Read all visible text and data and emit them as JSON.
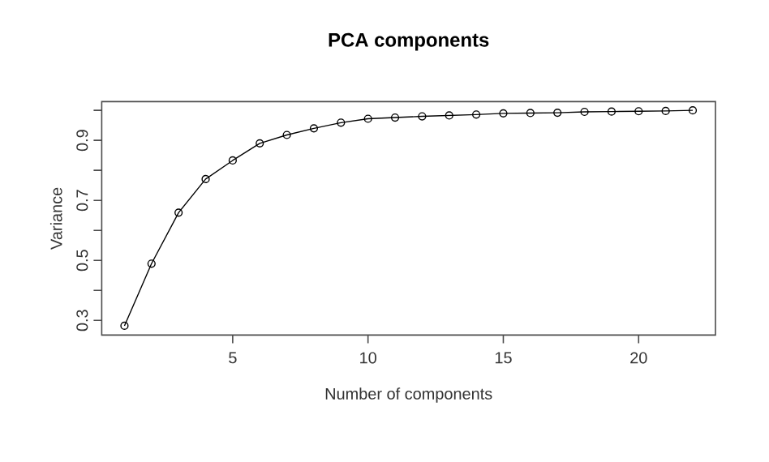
{
  "chart_data": {
    "type": "line",
    "title": "PCA components",
    "xlabel": "Number of components",
    "ylabel": "Variance",
    "x": [
      1,
      2,
      3,
      4,
      5,
      6,
      7,
      8,
      9,
      10,
      11,
      12,
      13,
      14,
      15,
      16,
      17,
      18,
      19,
      20,
      21,
      22
    ],
    "series": [
      {
        "color": "#000000",
        "values": [
          0.282,
          0.489,
          0.659,
          0.771,
          0.833,
          0.89,
          0.918,
          0.94,
          0.959,
          0.972,
          0.976,
          0.98,
          0.983,
          0.986,
          0.99,
          0.991,
          0.992,
          0.995,
          0.996,
          0.997,
          0.998,
          1.0
        ]
      }
    ],
    "xlim": [
      0.16,
      22.84
    ],
    "ylim": [
      0.251,
      1.029
    ],
    "xticks": [
      5,
      10,
      15,
      20
    ],
    "yticks": [
      0.3,
      {
        "value": 0.4,
        "label": null
      },
      0.5,
      {
        "value": 0.6,
        "label": null
      },
      0.7,
      {
        "value": 0.8,
        "label": null
      },
      0.9,
      {
        "value": 1.0,
        "label": null
      }
    ],
    "marker": "circle",
    "line_style": "solid",
    "grid": false,
    "legend": false
  }
}
